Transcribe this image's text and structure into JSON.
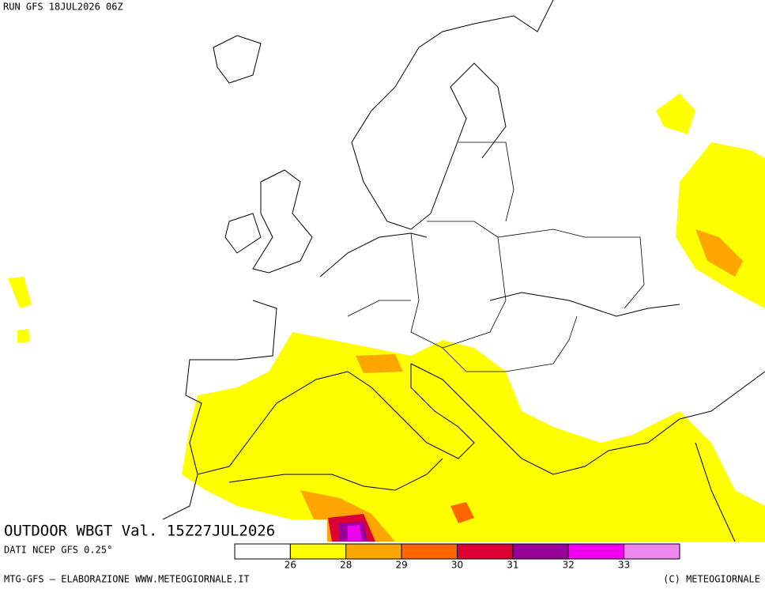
{
  "header": {
    "run": "RUN GFS 18JUL2026 06Z"
  },
  "title": "OUTDOOR WBGT Val. 15Z27JUL2026",
  "source": "DATI NCEP GFS 0.25°",
  "legend": {
    "colors": [
      "#ffffff",
      "#ffff00",
      "#ffa500",
      "#ff6600",
      "#dd0033",
      "#990099",
      "#ee00ee",
      "#ee88ee"
    ],
    "ticks": [
      26,
      28,
      29,
      30,
      31,
      32,
      33
    ]
  },
  "footer": {
    "left": "MTG-GFS — ELABORAZIONE WWW.METEOGIORNALE.IT",
    "right": "(C) METEOGIORNALE"
  }
}
